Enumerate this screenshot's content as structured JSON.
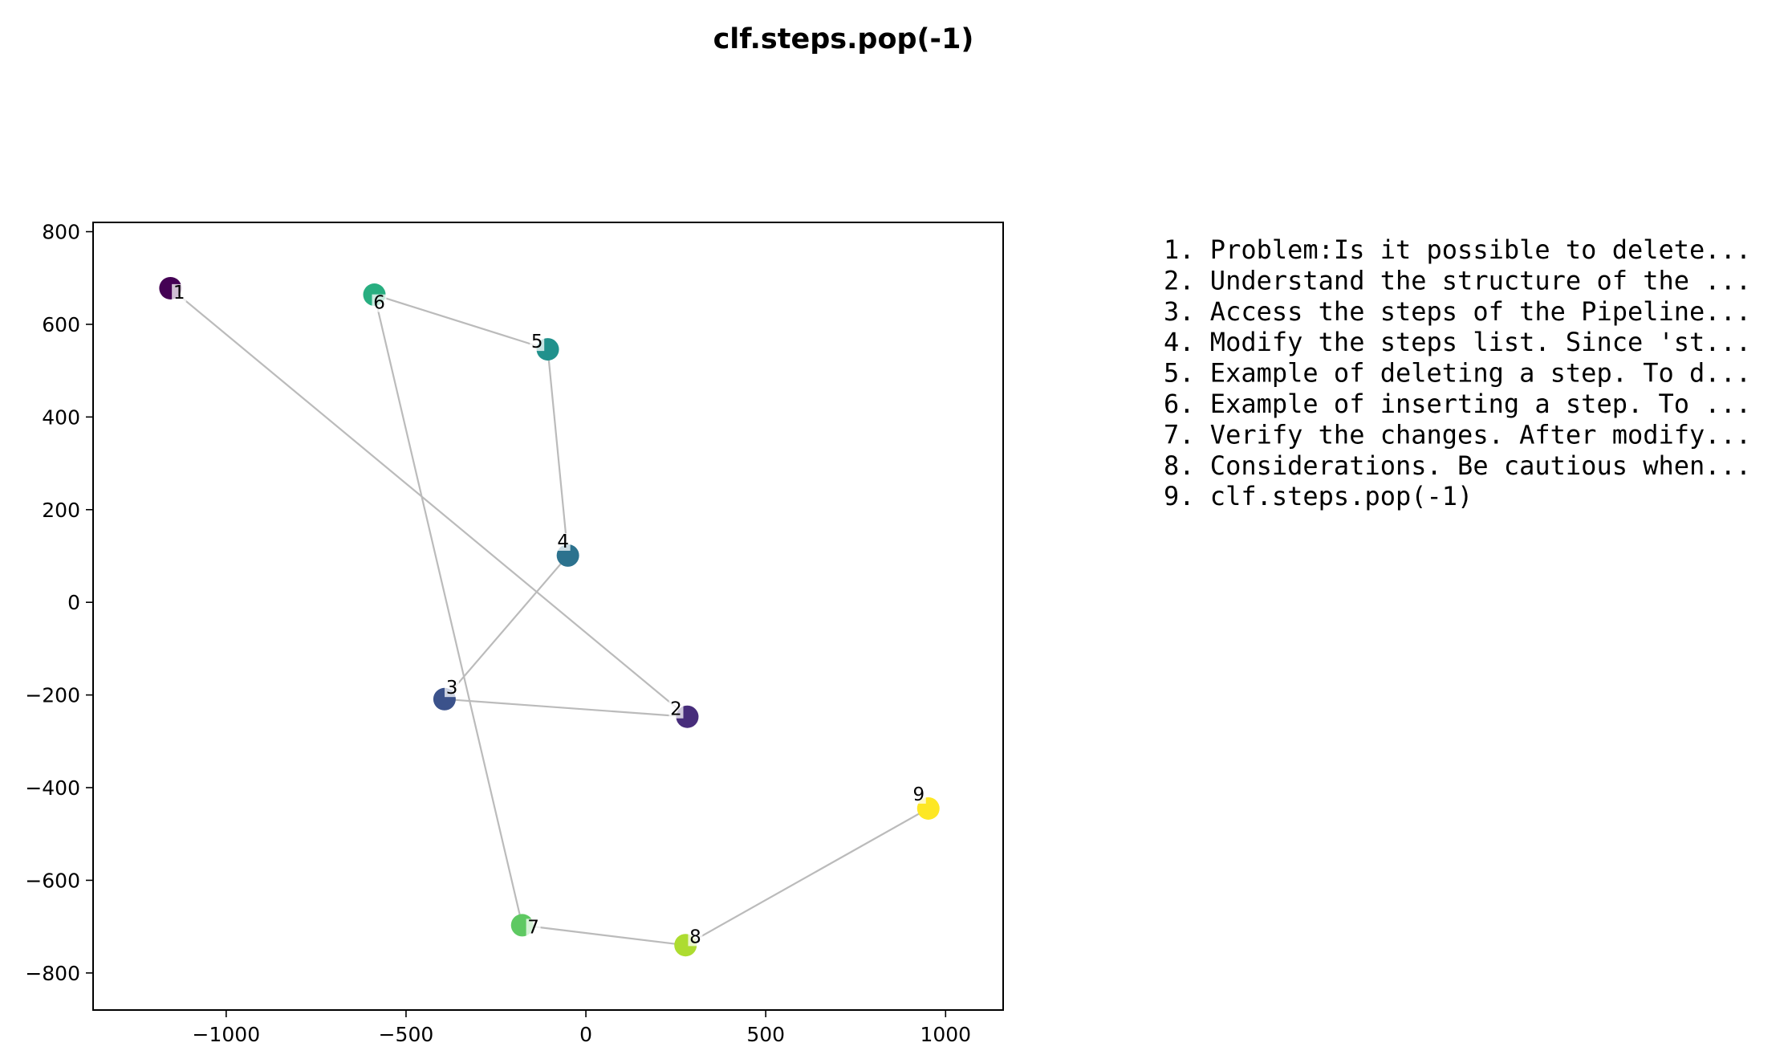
{
  "chart_data": {
    "type": "scatter",
    "title": "clf.steps.pop(-1)",
    "xlabel": "",
    "ylabel": "",
    "xlim": [
      -1370,
      1160
    ],
    "ylim": [
      -880,
      820
    ],
    "xticks": [
      -1000,
      -500,
      0,
      500,
      1000
    ],
    "yticks": [
      -800,
      -600,
      -400,
      -200,
      0,
      200,
      400,
      600,
      800
    ],
    "grid": false,
    "colormap": "viridis",
    "edge_color": "#bbbbbb",
    "points": [
      {
        "label": "1",
        "x": -1155,
        "y": 678,
        "color": "#440154"
      },
      {
        "label": "2",
        "x": 282,
        "y": -247,
        "color": "#472d7b"
      },
      {
        "label": "3",
        "x": -393,
        "y": -209,
        "color": "#3b528b"
      },
      {
        "label": "4",
        "x": -50,
        "y": 101,
        "color": "#2c728e"
      },
      {
        "label": "5",
        "x": -106,
        "y": 546,
        "color": "#21918c"
      },
      {
        "label": "6",
        "x": -588,
        "y": 664,
        "color": "#28ae80"
      },
      {
        "label": "7",
        "x": -177,
        "y": -697,
        "color": "#5ec962"
      },
      {
        "label": "8",
        "x": 277,
        "y": -740,
        "color": "#addc30"
      },
      {
        "label": "9",
        "x": 952,
        "y": -445,
        "color": "#fde725"
      }
    ],
    "legend": [
      "1. Problem:Is it possible to delete...",
      "2. Understand the structure of the ...",
      "3. Access the steps of the Pipeline...",
      "4. Modify the steps list. Since 'st...",
      "5. Example of deleting a step. To d...",
      "6. Example of inserting a step. To ...",
      "7. Verify the changes. After modify...",
      "8. Considerations. Be cautious when...",
      "9. clf.steps.pop(-1)"
    ]
  }
}
